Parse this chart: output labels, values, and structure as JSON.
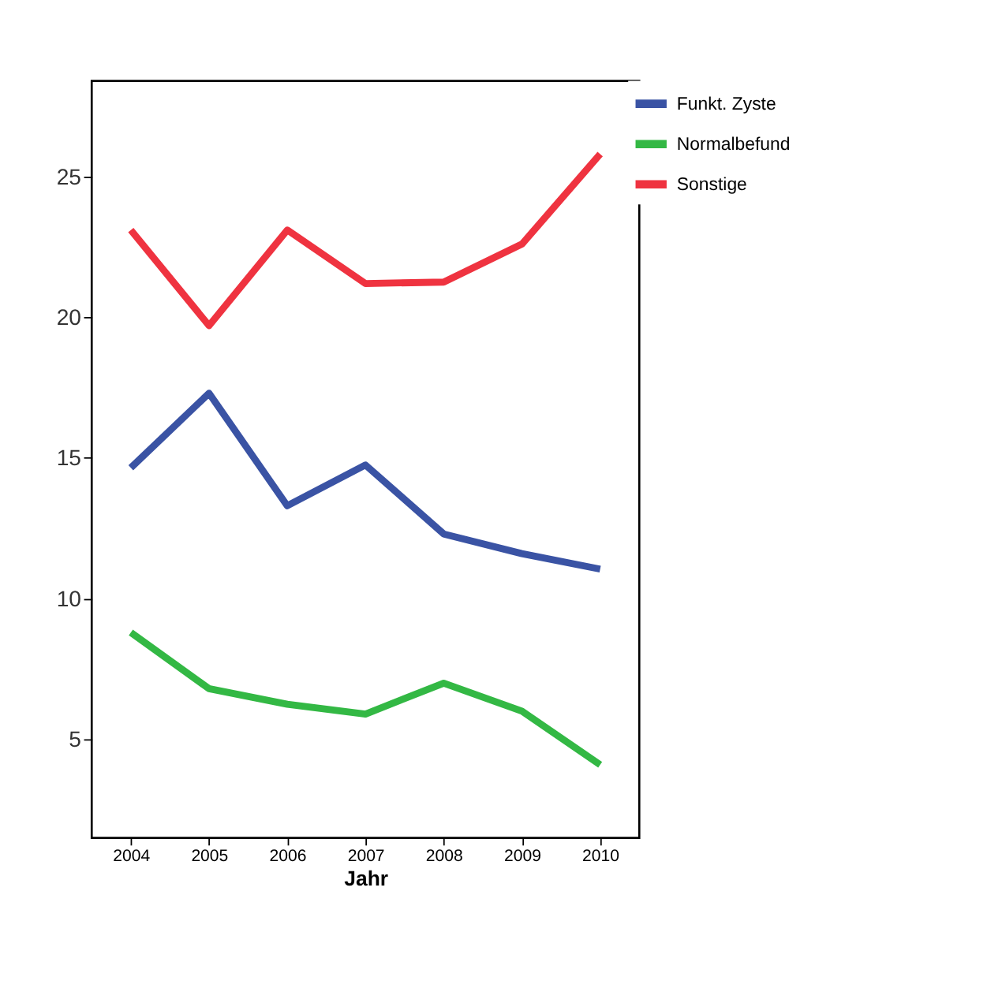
{
  "chart_data": {
    "type": "line",
    "xlabel": "Jahr",
    "categories": [
      "2004",
      "2005",
      "2006",
      "2007",
      "2008",
      "2009",
      "2010"
    ],
    "series": [
      {
        "name": "Funkt. Zyste",
        "color": "#3a53a4",
        "values": [
          14.65,
          17.3,
          13.3,
          14.75,
          12.3,
          11.6,
          11.05
        ]
      },
      {
        "name": "Normalbefund",
        "color": "#33b844",
        "values": [
          8.8,
          6.8,
          6.25,
          5.9,
          7.0,
          6.0,
          4.1
        ]
      },
      {
        "name": "Sonstige",
        "color": "#ef3340",
        "values": [
          23.1,
          19.7,
          23.1,
          21.2,
          21.25,
          22.6,
          25.8
        ]
      }
    ],
    "ylim": [
      1.5,
      28.4
    ],
    "yticks": [
      5,
      10,
      15,
      20,
      25
    ],
    "grid": false,
    "legend": "top right",
    "marker": "none",
    "line_style": "solid"
  }
}
